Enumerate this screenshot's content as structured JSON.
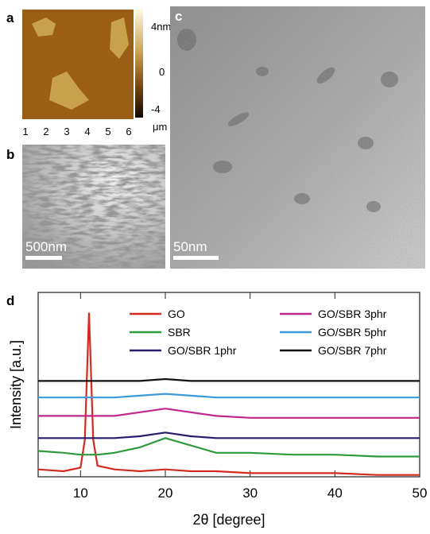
{
  "panels": {
    "a": {
      "label": "a",
      "colorbar_labels": [
        "4nm",
        "0",
        "-4"
      ],
      "x_ticks": [
        "1",
        "2",
        "3",
        "4",
        "5",
        "6"
      ],
      "x_unit": "μm"
    },
    "b": {
      "label": "b",
      "scale_bar": "500nm"
    },
    "c": {
      "label": "c",
      "scale_bar": "50nm"
    }
  },
  "chart_data": {
    "type": "line",
    "panel_label": "d",
    "xlabel": "2θ [degree]",
    "ylabel": "Intensity [a.u.]",
    "x": [
      5,
      8,
      10,
      10.5,
      11,
      11.5,
      12,
      14,
      17,
      20,
      23,
      26,
      30,
      35,
      40,
      45,
      50
    ],
    "xlim": [
      5,
      50
    ],
    "xticks": [
      10,
      20,
      30,
      40,
      50
    ],
    "ylim": [
      0,
      100
    ],
    "series": [
      {
        "name": "GO",
        "color": "#d42a1e",
        "values": [
          4,
          3,
          5,
          20,
          89,
          20,
          6,
          4,
          3,
          4,
          3,
          3,
          2,
          2,
          2,
          1,
          1
        ]
      },
      {
        "name": "SBR",
        "color": "#2f9a3b",
        "values": [
          14,
          13,
          12,
          12,
          12,
          12,
          12,
          13,
          16,
          21,
          17,
          13,
          13,
          12,
          12,
          11,
          11
        ]
      },
      {
        "name": "GO/SBR 1phr",
        "color": "#2a1b6e",
        "values": [
          21,
          21,
          21,
          21,
          21,
          21,
          21,
          21,
          22,
          24,
          22,
          21,
          21,
          21,
          21,
          21,
          21
        ]
      },
      {
        "name": "GO/SBR 3phr",
        "color": "#c0268c",
        "values": [
          33,
          33,
          33,
          33,
          33,
          33,
          33,
          33,
          35,
          37,
          35,
          33,
          32,
          32,
          32,
          32,
          32
        ]
      },
      {
        "name": "GO/SBR 5phr",
        "color": "#3a9ad9",
        "values": [
          43,
          43,
          43,
          43,
          43,
          43,
          43,
          43,
          44,
          45,
          44,
          43,
          43,
          43,
          43,
          43,
          43
        ]
      },
      {
        "name": "GO/SBR 7phr",
        "color": "#111111",
        "values": [
          52,
          52,
          52,
          52,
          52,
          52,
          52,
          52,
          52,
          53,
          52,
          52,
          52,
          52,
          52,
          52,
          52
        ]
      }
    ]
  }
}
